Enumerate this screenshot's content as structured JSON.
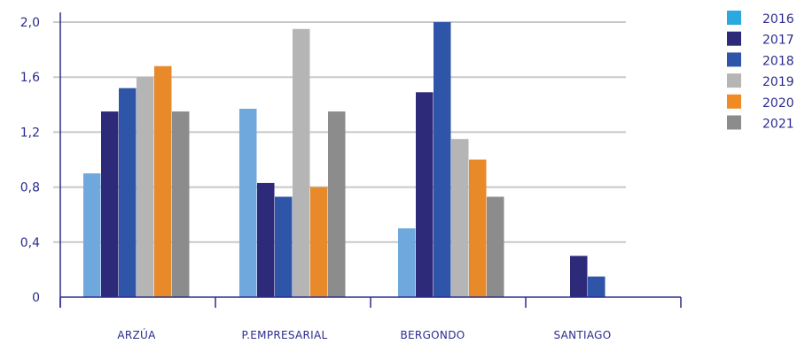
{
  "chart_data": {
    "type": "bar",
    "title": "",
    "xlabel": "",
    "ylabel": "",
    "categories": [
      "ARZÚA",
      "P.EMPRESARIAL",
      "BERGONDO",
      "SANTIAGO"
    ],
    "ylim": [
      0,
      2.0
    ],
    "yticks": [
      0,
      0.4,
      0.8,
      1.2,
      1.6,
      2.0
    ],
    "ytick_labels": [
      "0",
      "0,4",
      "0,8",
      "1,2",
      "1,6",
      "2,0"
    ],
    "grid": true,
    "legend_position": "right",
    "series": [
      {
        "name": "2016",
        "color": "#6fa8dc",
        "legend_color": "#29a9e0",
        "values": [
          0.9,
          1.37,
          0.5,
          null
        ]
      },
      {
        "name": "2017",
        "color": "#2e2a7a",
        "legend_color": "#2e2a7a",
        "values": [
          1.35,
          0.83,
          1.49,
          0.3
        ]
      },
      {
        "name": "2018",
        "color": "#2e55a8",
        "legend_color": "#2e55a8",
        "values": [
          1.52,
          0.73,
          2.0,
          0.15
        ]
      },
      {
        "name": "2019",
        "color": "#b5b5b5",
        "legend_color": "#b5b5b5",
        "values": [
          1.6,
          1.95,
          1.15,
          null
        ]
      },
      {
        "name": "2020",
        "color": "#e8892a",
        "legend_color": "#f08a24",
        "values": [
          1.68,
          0.8,
          1.0,
          null
        ]
      },
      {
        "name": "2021",
        "color": "#8c8c8c",
        "legend_color": "#8c8c8c",
        "values": [
          1.35,
          1.35,
          0.73,
          null
        ]
      }
    ]
  }
}
